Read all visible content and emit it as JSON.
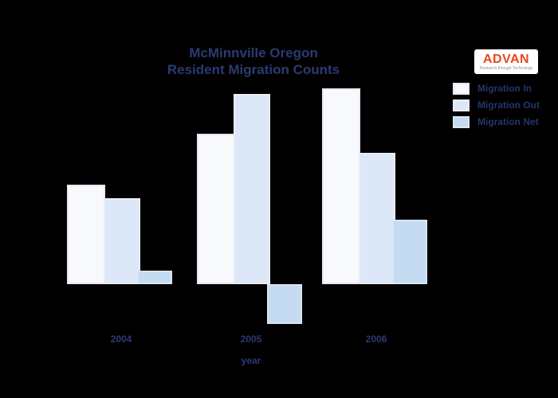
{
  "title": {
    "line1": "McMinnville Oregon",
    "line2": "Resident Migration Counts"
  },
  "axis": {
    "x_label": "year",
    "categories": [
      "2004",
      "2005",
      "2006"
    ]
  },
  "legend": {
    "items": [
      {
        "label": "Migration In",
        "color": "#f7f9fd"
      },
      {
        "label": "Migration Out",
        "color": "#dce8f8"
      },
      {
        "label": "Migration Net",
        "color": "#c4dbf2"
      }
    ]
  },
  "logo": {
    "name": "ADVAN",
    "tagline": "Research through Technology",
    "accent_color": "#e8481c"
  },
  "colors": {
    "background": "#000000",
    "text": "#2b3a72",
    "bar_in": "#f7f9fd",
    "bar_out": "#dce8f8",
    "bar_net": "#c4dbf2"
  },
  "chart_data": {
    "type": "bar",
    "title": "McMinnville Oregon Resident Migration Counts",
    "categories": [
      "2004",
      "2005",
      "2006"
    ],
    "series": [
      {
        "name": "Migration In",
        "values": [
          1250,
          1890,
          2460
        ]
      },
      {
        "name": "Migration Out",
        "values": [
          1080,
          2390,
          1650
        ]
      },
      {
        "name": "Migration Net",
        "values": [
          170,
          -500,
          810
        ]
      }
    ],
    "xlabel": "year",
    "ylabel": "",
    "ylim": [
      -700,
      2600
    ],
    "grid": false,
    "y_axis_shown": false,
    "legend_position": "top-right"
  }
}
